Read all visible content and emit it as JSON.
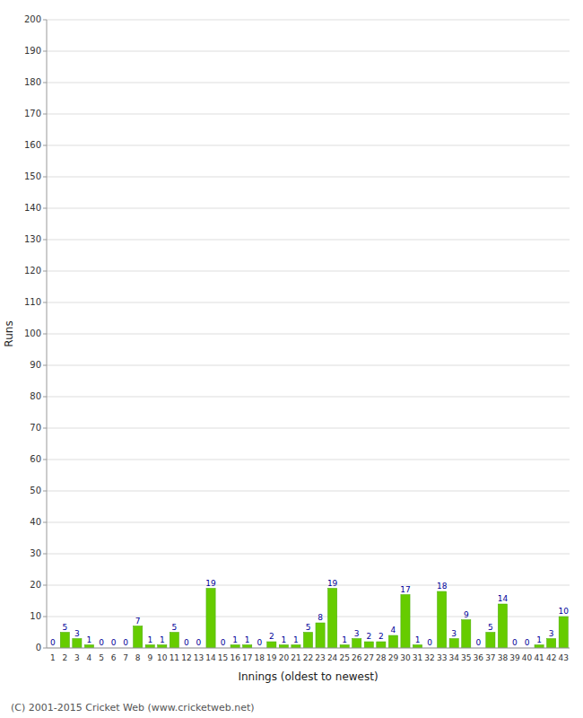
{
  "chart_data": {
    "type": "bar",
    "xlabel": "Innings (oldest to newest)",
    "ylabel": "Runs",
    "categories": [
      "1",
      "2",
      "3",
      "4",
      "5",
      "6",
      "7",
      "8",
      "9",
      "10",
      "11",
      "12",
      "13",
      "14",
      "15",
      "16",
      "17",
      "18",
      "19",
      "20",
      "21",
      "22",
      "23",
      "24",
      "25",
      "26",
      "27",
      "28",
      "29",
      "30",
      "31",
      "32",
      "33",
      "34",
      "35",
      "36",
      "37",
      "38",
      "39",
      "40",
      "41",
      "42",
      "43"
    ],
    "values": [
      0,
      5,
      3,
      1,
      0,
      0,
      0,
      7,
      1,
      1,
      5,
      0,
      0,
      19,
      0,
      1,
      1,
      0,
      2,
      1,
      1,
      5,
      8,
      19,
      1,
      3,
      2,
      2,
      4,
      17,
      1,
      0,
      18,
      3,
      9,
      0,
      5,
      14,
      0,
      0,
      1,
      3,
      10
    ],
    "color": "#66cc00",
    "ylim": [
      0,
      200
    ],
    "yticks": [
      0,
      10,
      20,
      30,
      40,
      50,
      60,
      70,
      80,
      90,
      100,
      110,
      120,
      130,
      140,
      150,
      160,
      170,
      180,
      190,
      200
    ],
    "grid": true,
    "data_labels": true,
    "annotations": [
      "(C) 2001-2015 Cricket Web (www.cricketweb.net)"
    ]
  }
}
